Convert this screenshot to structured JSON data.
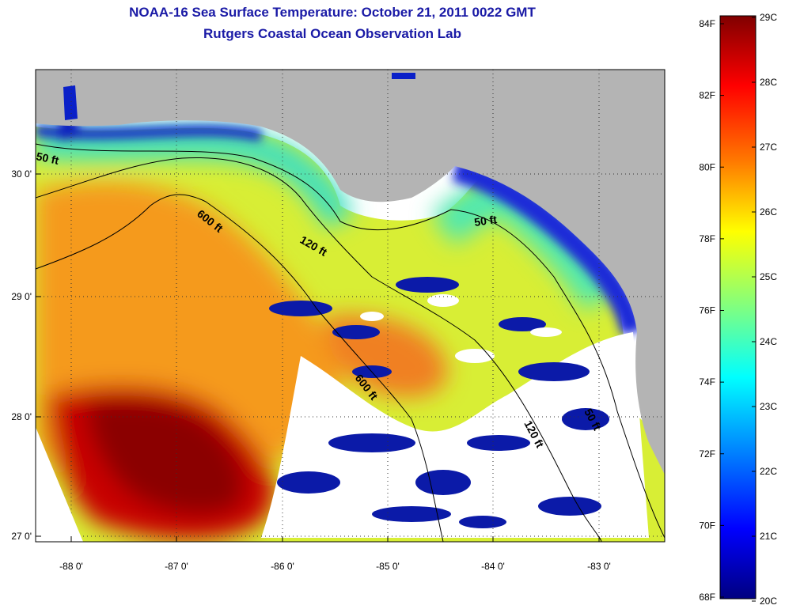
{
  "title": "NOAA-16 Sea Surface Temperature:  October 21, 2011 0022 GMT",
  "subtitle": "Rutgers Coastal Ocean Observation Lab",
  "lon_ticks": [
    "-88 0'",
    "-87 0'",
    "-86 0'",
    "-85 0'",
    "-84 0'",
    "-83 0'"
  ],
  "lat_ticks": [
    "30 0'",
    "29 0'",
    "28 0'",
    "27 0'"
  ],
  "contours": [
    "50 ft",
    "600 ft",
    "120 ft",
    "50 ft",
    "600 ft",
    "120 ft",
    "50 ft"
  ],
  "colorbar": {
    "f_labels": [
      "84F",
      "82F",
      "80F",
      "78F",
      "76F",
      "74F",
      "72F",
      "70F",
      "68F"
    ],
    "c_labels": [
      "29C",
      "28C",
      "27C",
      "26C",
      "25C",
      "24C",
      "23C",
      "22C",
      "21C",
      "20C"
    ]
  },
  "colors": {
    "land": "#b4b4b4",
    "title": "#1a1aa6"
  }
}
